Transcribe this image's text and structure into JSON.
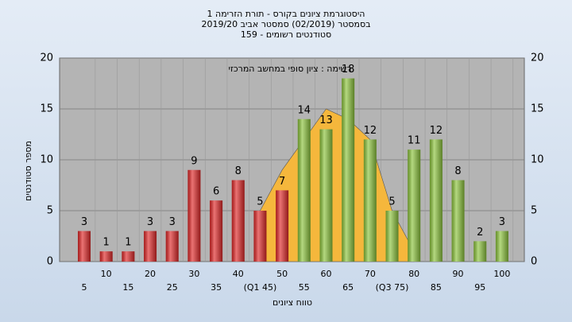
{
  "chart_data": {
    "type": "bar",
    "title": [
      "היסטוגרמת ציונים בקורס - תורת הזרימה 1",
      "בסמסטר  (02/2019)  סמסטר אביב 2019/20",
      "סטודנטים רשומים - 159"
    ],
    "annotation": "רשימה : ציון סופי במחשב המרכזי",
    "y_label": "מספר סטודנטים",
    "x_label": "טווח ציונים",
    "categories": [
      "5",
      "10",
      "15",
      "20",
      "25",
      "30",
      "35",
      "40",
      "(Q1 45)",
      "50",
      "55",
      "60",
      "65",
      "70",
      "(Q3 75)",
      "80",
      "85",
      "90",
      "95",
      "100"
    ],
    "values": [
      3,
      1,
      1,
      3,
      3,
      9,
      6,
      8,
      5,
      7,
      14,
      13,
      18,
      12,
      5,
      11,
      12,
      8,
      2,
      3
    ],
    "colors": [
      "#e02828",
      "#e02828",
      "#e02828",
      "#e02828",
      "#e02828",
      "#e02828",
      "#e02828",
      "#e02828",
      "#e02828",
      "#e02828",
      "#8cc43c",
      "#8cc43c",
      "#8cc43c",
      "#8cc43c",
      "#8cc43c",
      "#8cc43c",
      "#8cc43c",
      "#8cc43c",
      "#8cc43c",
      "#8cc43c"
    ],
    "area_values": [
      null,
      null,
      null,
      null,
      null,
      null,
      null,
      null,
      5,
      9,
      12,
      15,
      14,
      12,
      5,
      1,
      null,
      null,
      null,
      null
    ],
    "area_color": "#f5b73c",
    "ylim": [
      0,
      20
    ],
    "yticks": [
      0,
      5,
      10,
      15,
      20
    ],
    "grid": true
  }
}
